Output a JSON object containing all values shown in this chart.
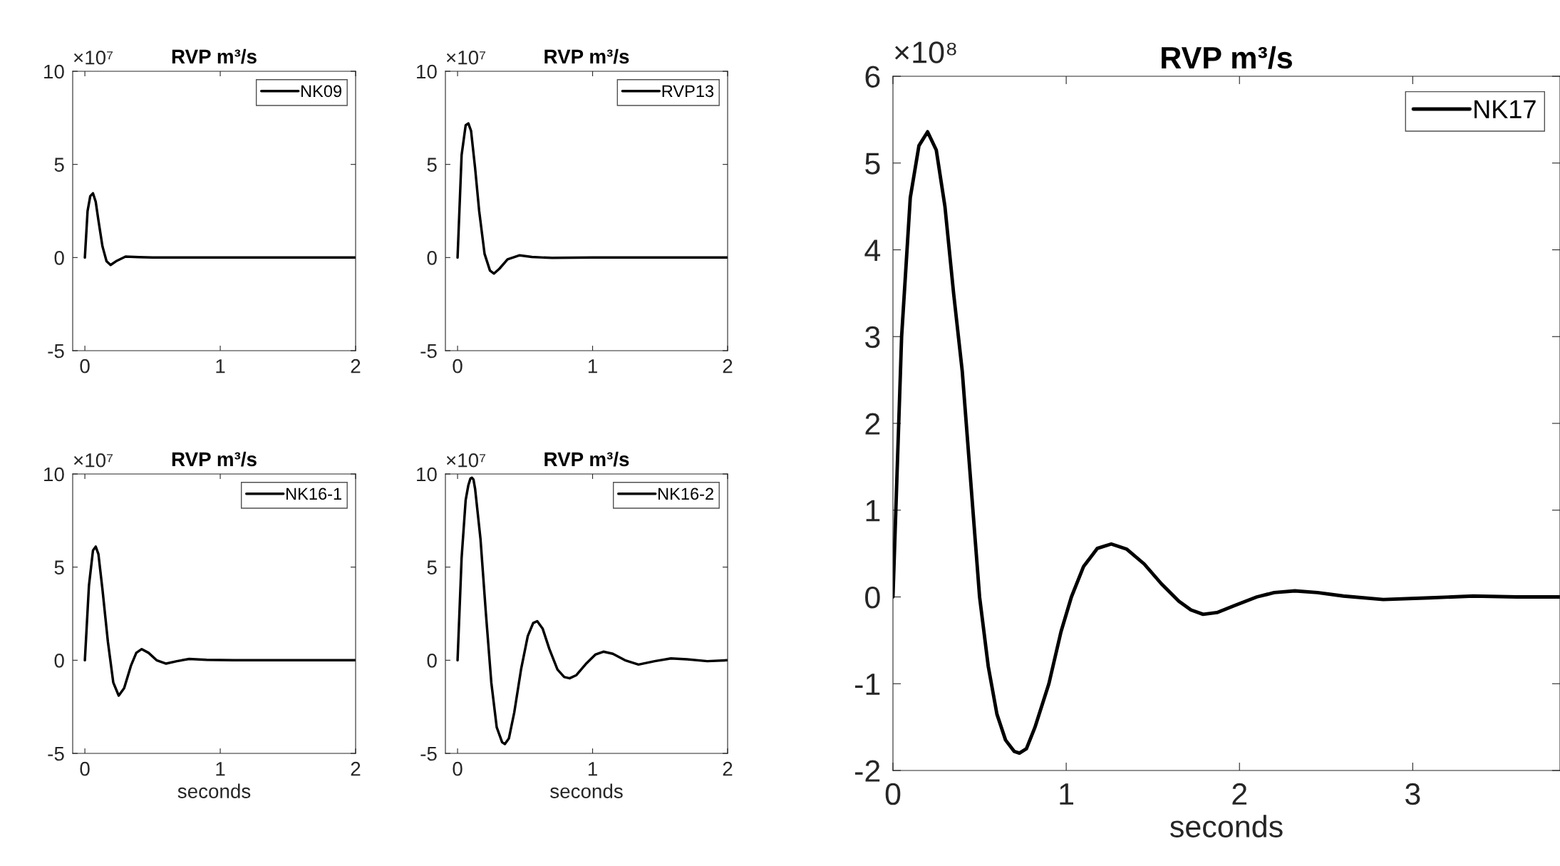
{
  "chart_data": [
    {
      "type": "line",
      "title": "RVP m³/s",
      "annotations": [
        "×10⁷"
      ],
      "xlim": [
        -0.09,
        2
      ],
      "xticks": [
        0,
        1,
        2
      ],
      "ylim": [
        -5,
        10
      ],
      "yticks": [
        -5,
        0,
        5,
        10
      ],
      "legend": "top right",
      "grid": false,
      "series": [
        {
          "name": "NK09",
          "color": "#000000",
          "x": [
            0,
            0.02,
            0.04,
            0.06,
            0.08,
            0.1,
            0.13,
            0.16,
            0.19,
            0.23,
            0.3,
            0.4,
            0.5,
            1,
            2
          ],
          "values": [
            0,
            2.5,
            3.3,
            3.45,
            3.0,
            2.0,
            0.6,
            -0.2,
            -0.4,
            -0.2,
            0.05,
            0.02,
            0,
            0,
            0
          ]
        }
      ]
    },
    {
      "type": "line",
      "title": "RVP m³/s",
      "annotations": [
        "×10⁷"
      ],
      "xlim": [
        -0.09,
        2
      ],
      "xticks": [
        0,
        1,
        2
      ],
      "ylim": [
        -5,
        10
      ],
      "yticks": [
        -5,
        0,
        5,
        10
      ],
      "legend": "top right",
      "grid": false,
      "series": [
        {
          "name": "RVP13",
          "color": "#000000",
          "x": [
            0,
            0.03,
            0.06,
            0.08,
            0.1,
            0.13,
            0.16,
            0.2,
            0.24,
            0.27,
            0.31,
            0.37,
            0.46,
            0.55,
            0.7,
            1,
            2
          ],
          "values": [
            0,
            5.5,
            7.1,
            7.2,
            6.8,
            4.8,
            2.5,
            0.2,
            -0.7,
            -0.86,
            -0.6,
            -0.1,
            0.12,
            0.03,
            -0.02,
            0,
            0
          ]
        }
      ]
    },
    {
      "type": "line",
      "title": "RVP m³/s",
      "xlabel": "seconds",
      "annotations": [
        "×10⁷"
      ],
      "xlim": [
        -0.09,
        2
      ],
      "xticks": [
        0,
        1,
        2
      ],
      "ylim": [
        -5,
        10
      ],
      "yticks": [
        -5,
        0,
        5,
        10
      ],
      "legend": "top right",
      "grid": false,
      "series": [
        {
          "name": "NK16-1",
          "color": "#000000",
          "x": [
            0,
            0.03,
            0.06,
            0.08,
            0.1,
            0.13,
            0.17,
            0.21,
            0.25,
            0.29,
            0.34,
            0.38,
            0.42,
            0.47,
            0.53,
            0.6,
            0.68,
            0.77,
            0.9,
            1.1,
            2
          ],
          "values": [
            0,
            4.0,
            5.9,
            6.1,
            5.7,
            3.8,
            1.0,
            -1.2,
            -1.9,
            -1.5,
            -0.3,
            0.4,
            0.6,
            0.4,
            0.0,
            -0.18,
            -0.05,
            0.07,
            0.02,
            0,
            0
          ]
        }
      ]
    },
    {
      "type": "line",
      "title": "RVP m³/s",
      "xlabel": "seconds",
      "annotations": [
        "×10⁷"
      ],
      "xlim": [
        -0.09,
        2
      ],
      "xticks": [
        0,
        1,
        2
      ],
      "ylim": [
        -5,
        10
      ],
      "yticks": [
        -5,
        0,
        5,
        10
      ],
      "legend": "top right",
      "grid": false,
      "series": [
        {
          "name": "NK16-2",
          "color": "#000000",
          "x": [
            0,
            0.03,
            0.06,
            0.08,
            0.095,
            0.106,
            0.118,
            0.13,
            0.17,
            0.21,
            0.25,
            0.29,
            0.33,
            0.35,
            0.38,
            0.42,
            0.47,
            0.52,
            0.56,
            0.59,
            0.63,
            0.68,
            0.74,
            0.79,
            0.83,
            0.88,
            0.95,
            1.02,
            1.08,
            1.15,
            1.24,
            1.34,
            1.46,
            1.58,
            1.7,
            1.85,
            2
          ],
          "values": [
            0,
            5.5,
            8.6,
            9.4,
            9.75,
            9.8,
            9.7,
            9.2,
            6.5,
            2.5,
            -1.2,
            -3.6,
            -4.4,
            -4.5,
            -4.2,
            -2.8,
            -0.5,
            1.3,
            2.0,
            2.1,
            1.7,
            0.6,
            -0.5,
            -0.9,
            -0.97,
            -0.8,
            -0.2,
            0.3,
            0.46,
            0.35,
            0.0,
            -0.23,
            -0.05,
            0.1,
            0.05,
            -0.05,
            0
          ]
        }
      ]
    },
    {
      "type": "line",
      "title": "RVP m³/s",
      "xlabel": "seconds",
      "annotations": [
        "×10⁸"
      ],
      "xlim": [
        0,
        3.85
      ],
      "xticks": [
        0,
        1,
        2,
        3
      ],
      "ylim": [
        -2,
        6
      ],
      "yticks": [
        -2,
        -1,
        0,
        1,
        2,
        3,
        4,
        5,
        6
      ],
      "legend": "top right",
      "grid": false,
      "series": [
        {
          "name": "NK17",
          "color": "#000000",
          "x": [
            0,
            0.05,
            0.1,
            0.15,
            0.2,
            0.25,
            0.3,
            0.35,
            0.4,
            0.45,
            0.5,
            0.55,
            0.6,
            0.65,
            0.7,
            0.73,
            0.77,
            0.82,
            0.9,
            0.97,
            1.03,
            1.1,
            1.18,
            1.26,
            1.35,
            1.45,
            1.55,
            1.65,
            1.72,
            1.79,
            1.87,
            1.97,
            2.1,
            2.2,
            2.32,
            2.45,
            2.6,
            2.83,
            3.1,
            3.35,
            3.6,
            3.85
          ],
          "values": [
            0,
            3.0,
            4.6,
            5.2,
            5.36,
            5.15,
            4.5,
            3.5,
            2.6,
            1.3,
            0.0,
            -0.8,
            -1.35,
            -1.65,
            -1.78,
            -1.8,
            -1.75,
            -1.5,
            -1.0,
            -0.4,
            0.0,
            0.35,
            0.56,
            0.61,
            0.55,
            0.38,
            0.15,
            -0.05,
            -0.15,
            -0.2,
            -0.18,
            -0.1,
            0.0,
            0.05,
            0.07,
            0.05,
            0.01,
            -0.03,
            -0.01,
            0.01,
            0,
            0
          ]
        }
      ]
    }
  ]
}
